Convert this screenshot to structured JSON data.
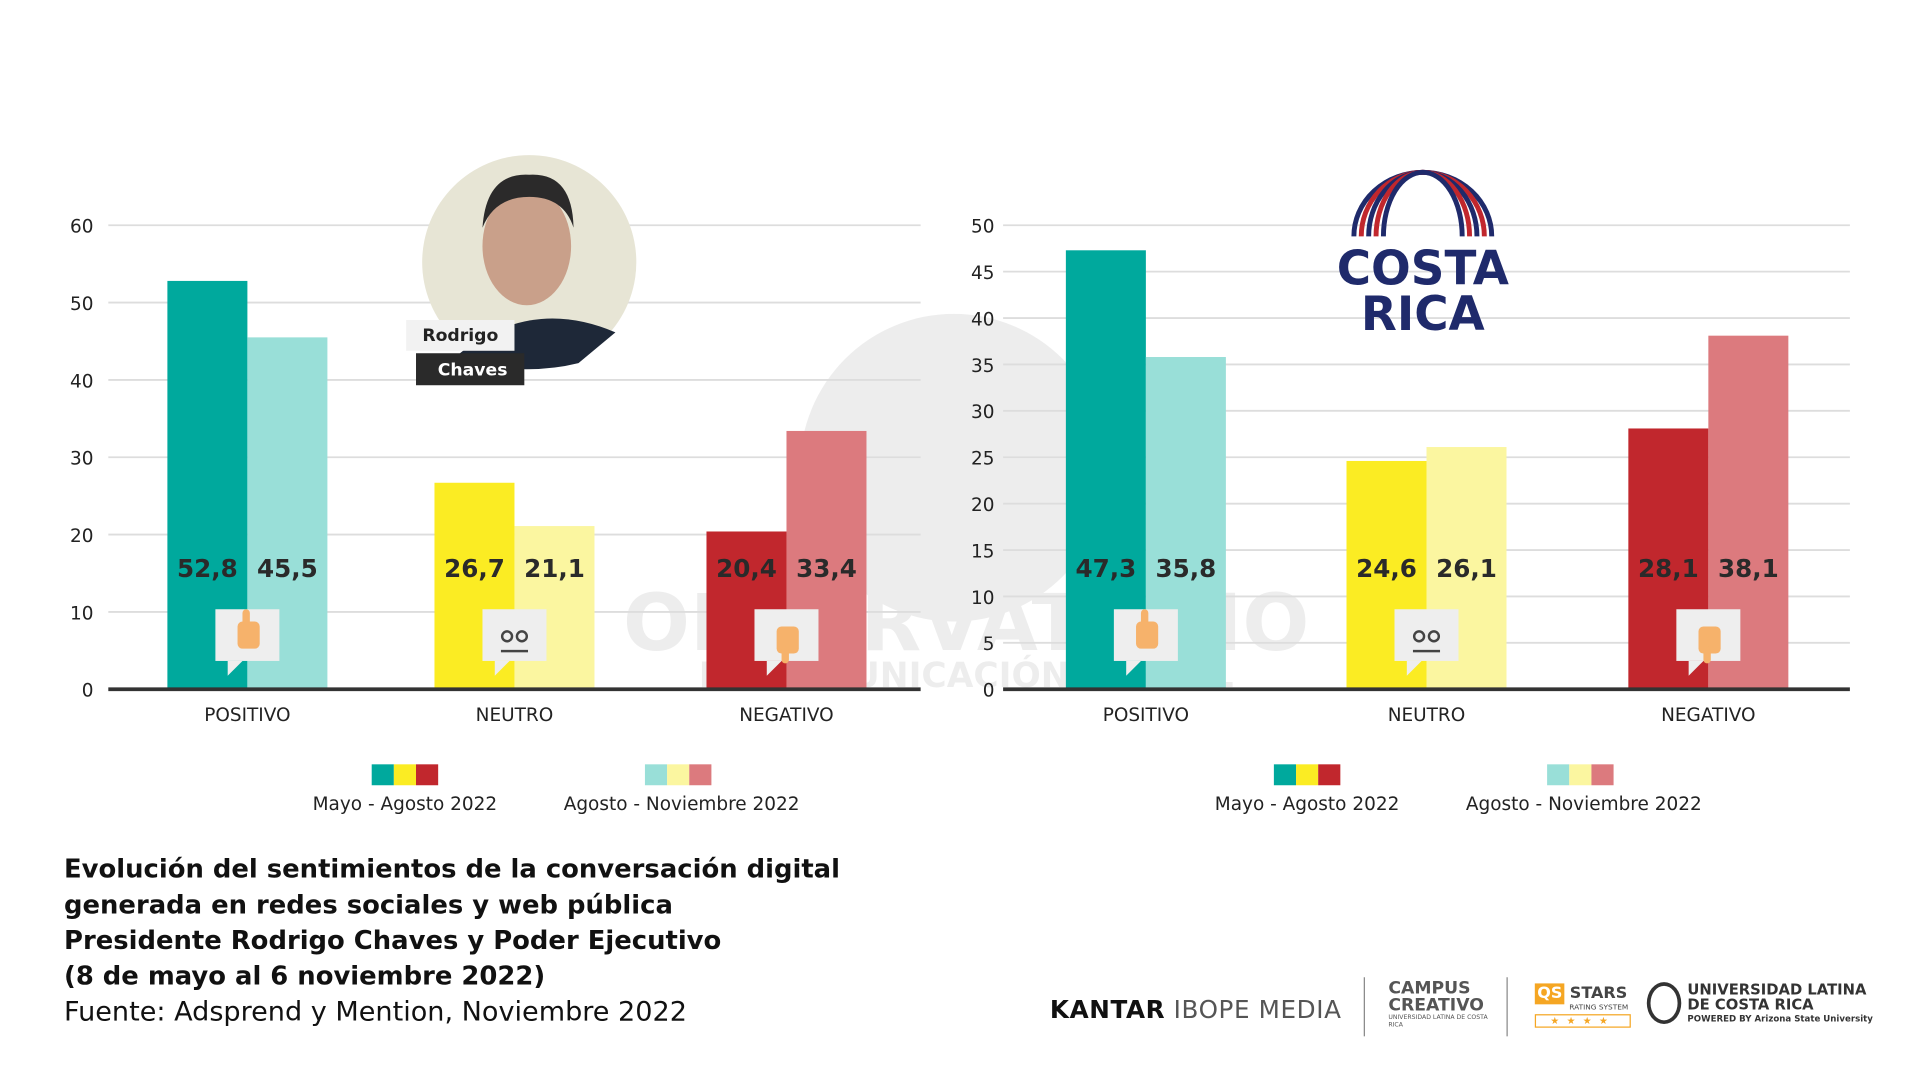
{
  "chart_data": [
    {
      "type": "bar",
      "categories": [
        "POSITIVO",
        "NEUTRO",
        "NEGATIVO"
      ],
      "series": [
        {
          "name": "Mayo - Agosto 2022",
          "values": [
            52.8,
            26.7,
            20.4
          ],
          "labels": [
            "52,8",
            "26,7",
            "20,4"
          ]
        },
        {
          "name": "Agosto - Noviembre 2022",
          "values": [
            45.5,
            21.1,
            33.4
          ],
          "labels": [
            "45,5",
            "21,1",
            "33,4"
          ]
        }
      ],
      "ylim": [
        0,
        60
      ],
      "yticks": [
        0,
        10,
        20,
        30,
        40,
        50,
        60
      ],
      "grid": true,
      "legend": "bottom",
      "annotation": {
        "first": "Rodrigo",
        "last": "Chaves"
      }
    },
    {
      "type": "bar",
      "categories": [
        "POSITIVO",
        "NEUTRO",
        "NEGATIVO"
      ],
      "series": [
        {
          "name": "Mayo - Agosto 2022",
          "values": [
            47.3,
            24.6,
            28.1
          ],
          "labels": [
            "47,3",
            "24,6",
            "28,1"
          ]
        },
        {
          "name": "Agosto - Noviembre 2022",
          "values": [
            35.8,
            26.1,
            38.1
          ],
          "labels": [
            "35,8",
            "26,1",
            "38,1"
          ]
        }
      ],
      "ylim": [
        0,
        50
      ],
      "yticks": [
        0,
        5,
        10,
        15,
        20,
        25,
        30,
        35,
        40,
        45,
        50
      ],
      "grid": true,
      "legend": "bottom",
      "logo_text": [
        "COSTA",
        "RICA"
      ]
    }
  ],
  "colors": {
    "series1": [
      "#00a99d",
      "#fbec23",
      "#c1272d"
    ],
    "series2": [
      "#99dfd8",
      "#fbf6a0",
      "#dc7a7e"
    ],
    "axis": "#333333",
    "grid": "#dddddd"
  },
  "icons": [
    "thumbs-up-icon",
    "neutral-face-icon",
    "thumbs-down-icon"
  ],
  "watermark": [
    "OBSERVATORIO",
    "DE COMUNICACIÓN DIGITAL"
  ],
  "caption": {
    "lines": [
      "Evolución del sentimientos de la conversación digital",
      "generada en redes sociales y web pública",
      "Presidente Rodrigo Chaves y Poder Ejecutivo",
      "(8 de mayo al 6 noviembre 2022)"
    ],
    "source": "Fuente: Adsprend y Mention, Noviembre 2022"
  },
  "logos": {
    "kantar1": "KANTAR",
    "kantar2": "IBOPE MEDIA",
    "campus": "CAMPUS CREATIVO",
    "campus_sub": "UNIVERSIDAD LATINA DE COSTA RICA",
    "qs": "QS",
    "stars": "STARS",
    "qs_sub": "RATING SYSTEM",
    "ulat": "UNIVERSIDAD LATINA",
    "ulat2": "DE COSTA RICA",
    "ulat_sub": "POWERED BY Arizona State University"
  }
}
